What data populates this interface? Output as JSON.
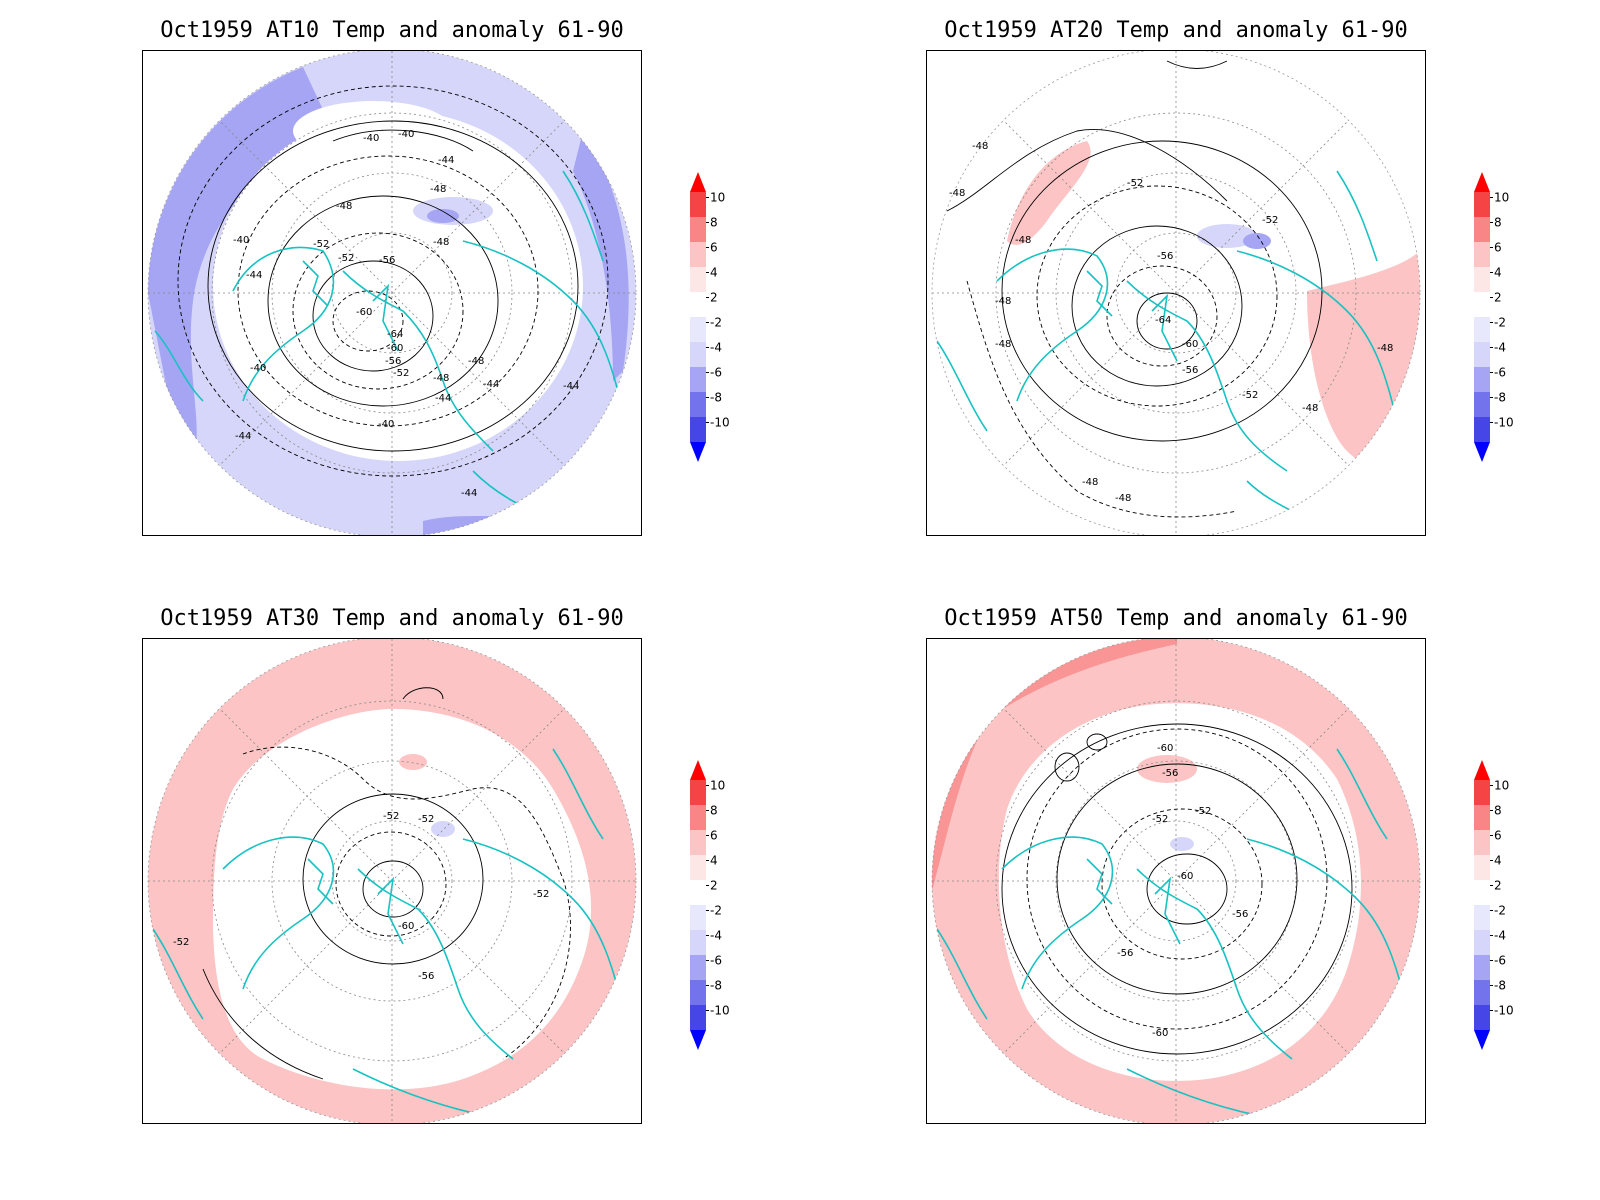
{
  "colorbar": {
    "labels": [
      "10",
      "8",
      "6",
      "4",
      "2",
      "-2",
      "-4",
      "-6",
      "-8",
      "-10"
    ],
    "colors": [
      "#ff0000",
      "#f44444",
      "#f98686",
      "#fcc4c4",
      "#ffffff",
      "#d6d6fa",
      "#a5a5f3",
      "#7373ec",
      "#4646e6",
      "#0000ff",
      "#ff0000"
    ]
  },
  "land_color": "#19c2c2",
  "panels": [
    {
      "title": "Oct1959 AT10 Temp and anomaly 61-90",
      "anomaly_fill": "negative",
      "contour_labels": [
        "-40",
        "-40",
        "-44",
        "-48",
        "-48",
        "-48",
        "-40",
        "-52",
        "-52",
        "-56",
        "-44",
        "-60",
        "-64",
        "-60",
        "-56",
        "-52",
        "-48",
        "-48",
        "-44",
        "-44",
        "-44",
        "-40",
        "-40",
        "-44",
        "-44"
      ]
    },
    {
      "title": "Oct1959 AT20 Temp and anomaly 61-90",
      "anomaly_fill": "mixed",
      "contour_labels": [
        "-48",
        "-48",
        "-52",
        "-52",
        "-48",
        "-56",
        "-48",
        "-48",
        "-64",
        "-60",
        "-56",
        "-52",
        "-48",
        "-48",
        "-48",
        "-48"
      ]
    },
    {
      "title": "Oct1959 AT30 Temp and anomaly 61-90",
      "anomaly_fill": "positive",
      "contour_labels": [
        "-52",
        "-52",
        "-52",
        "-60",
        "-56",
        "-52"
      ]
    },
    {
      "title": "Oct1959 AT50 Temp and anomaly 61-90",
      "anomaly_fill": "positive",
      "contour_labels": [
        "-60",
        "-56",
        "-52",
        "-52",
        "-60",
        "-56",
        "-56",
        "-60"
      ]
    }
  ]
}
